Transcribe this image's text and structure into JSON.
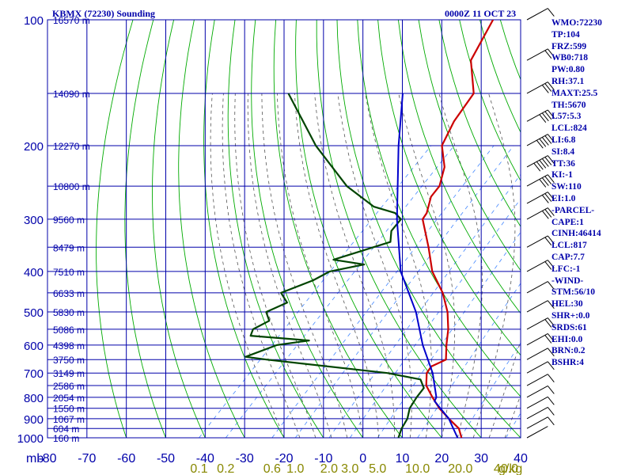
{
  "header": {
    "station": "KBMX (72230) Sounding",
    "time": "0000Z 11 OCT 23"
  },
  "colors": {
    "grid": "#0000aa",
    "temperature": "#cc0000",
    "dewpoint": "#004400",
    "parcel": "#0000cc",
    "dry_adiabat": "#00aa00",
    "moist_adiabat": "#555555",
    "mixing_ratio": "#4488ff",
    "mixing_label": "#888800",
    "wind": "#000000"
  },
  "stats": [
    "WMO:72230",
    "TP:104",
    "FRZ:599",
    "WB0:718",
    "PW:0.80",
    "RH:37.1",
    "MAXT:25.5",
    "TH:5670",
    "L57:5.3",
    "LCL:824",
    "LI:6.8",
    "SI:8.4",
    "TT:36",
    "KI:-1",
    "SW:110",
    "EI:1.0",
    "-PARCEL-",
    "CAPE:1",
    "CINH:46414",
    "LCL:817",
    "CAP:7.7",
    "LFC:-1",
    "-WIND-",
    "STM:56/10",
    "HEL:30",
    "SHR+:0.0",
    "SRDS:61",
    "EHI:0.0",
    "BRN:0.2",
    "BSHR:4"
  ],
  "chart_data": {
    "type": "line",
    "title": "KBMX (72230) Sounding",
    "subtitle": "0000Z 11 OCT 23",
    "y_axis_unit": "mb",
    "x_axis_unit": "g/kg",
    "temperature_ticks": [
      "-80",
      "-70",
      "-60",
      "-50",
      "-40",
      "-30",
      "-20",
      "-10",
      "0",
      "10",
      "20",
      "30",
      "40"
    ],
    "temperature_range": [
      -80,
      40
    ],
    "pressure_ticks": [
      "100",
      "200",
      "300",
      "400",
      "500",
      "600",
      "700",
      "800",
      "900",
      "1000"
    ],
    "pressure_range": [
      100,
      1000
    ],
    "height_labels": [
      {
        "p": 100,
        "label": "16570 m"
      },
      {
        "p": 150,
        "label": "14090 m"
      },
      {
        "p": 200,
        "label": "12270 m"
      },
      {
        "p": 250,
        "label": "10800 m"
      },
      {
        "p": 300,
        "label": "9560 m"
      },
      {
        "p": 350,
        "label": "8479 m"
      },
      {
        "p": 400,
        "label": "7510 m"
      },
      {
        "p": 450,
        "label": "6633 m"
      },
      {
        "p": 500,
        "label": "5830 m"
      },
      {
        "p": 550,
        "label": "5086 m"
      },
      {
        "p": 600,
        "label": "4398 m"
      },
      {
        "p": 650,
        "label": "3750 m"
      },
      {
        "p": 700,
        "label": "3149 m"
      },
      {
        "p": 750,
        "label": "2586 m"
      },
      {
        "p": 800,
        "label": "2054 m"
      },
      {
        "p": 850,
        "label": "1550 m"
      },
      {
        "p": 900,
        "label": "1067 m"
      },
      {
        "p": 950,
        "label": "604 m"
      },
      {
        "p": 1000,
        "label": "160 m"
      }
    ],
    "mixing_ratio_labels": [
      "0.1",
      "0.2",
      "0.6",
      "1.0",
      "2.0",
      "3.0",
      "5.0",
      "10.0",
      "20.0",
      "40.0"
    ],
    "mixing_ratio_values": [
      0.1,
      0.2,
      0.6,
      1.0,
      2.0,
      3.0,
      5.0,
      10.0,
      20.0,
      40.0
    ],
    "series": [
      {
        "key": "temperature",
        "points": [
          {
            "p": 100,
            "t": -71.5
          },
          {
            "p": 125,
            "t": -67
          },
          {
            "p": 150,
            "t": -58
          },
          {
            "p": 175,
            "t": -56
          },
          {
            "p": 200,
            "t": -53
          },
          {
            "p": 225,
            "t": -47
          },
          {
            "p": 250,
            "t": -43.5
          },
          {
            "p": 265,
            "t": -43
          },
          {
            "p": 290,
            "t": -40
          },
          {
            "p": 300,
            "t": -39.5
          },
          {
            "p": 350,
            "t": -31
          },
          {
            "p": 400,
            "t": -24
          },
          {
            "p": 450,
            "t": -16
          },
          {
            "p": 500,
            "t": -10
          },
          {
            "p": 550,
            "t": -5.5
          },
          {
            "p": 600,
            "t": -2
          },
          {
            "p": 650,
            "t": 1.5
          },
          {
            "p": 675,
            "t": -0.5
          },
          {
            "p": 700,
            "t": 0
          },
          {
            "p": 750,
            "t": 3
          },
          {
            "p": 800,
            "t": 7.5
          },
          {
            "p": 850,
            "t": 12
          },
          {
            "p": 900,
            "t": 17
          },
          {
            "p": 950,
            "t": 22
          },
          {
            "p": 1000,
            "t": 25
          }
        ]
      },
      {
        "key": "dewpoint",
        "points": [
          {
            "p": 150,
            "t": -105
          },
          {
            "p": 200,
            "t": -85
          },
          {
            "p": 250,
            "t": -67
          },
          {
            "p": 280,
            "t": -55
          },
          {
            "p": 290,
            "t": -48
          },
          {
            "p": 300,
            "t": -45
          },
          {
            "p": 320,
            "t": -44.5
          },
          {
            "p": 340,
            "t": -42
          },
          {
            "p": 350,
            "t": -45
          },
          {
            "p": 375,
            "t": -52
          },
          {
            "p": 385,
            "t": -43
          },
          {
            "p": 400,
            "t": -50
          },
          {
            "p": 420,
            "t": -52
          },
          {
            "p": 450,
            "t": -57
          },
          {
            "p": 475,
            "t": -53
          },
          {
            "p": 500,
            "t": -56
          },
          {
            "p": 525,
            "t": -53
          },
          {
            "p": 550,
            "t": -55
          },
          {
            "p": 570,
            "t": -54
          },
          {
            "p": 585,
            "t": -38
          },
          {
            "p": 600,
            "t": -45
          },
          {
            "p": 640,
            "t": -50
          },
          {
            "p": 650,
            "t": -44
          },
          {
            "p": 700,
            "t": -10
          },
          {
            "p": 725,
            "t": 0
          },
          {
            "p": 760,
            "t": 3
          },
          {
            "p": 800,
            "t": 3.5
          },
          {
            "p": 850,
            "t": 4.5
          },
          {
            "p": 900,
            "t": 6.5
          },
          {
            "p": 950,
            "t": 7.5
          },
          {
            "p": 1000,
            "t": 9
          }
        ]
      },
      {
        "key": "parcel",
        "points": [
          {
            "p": 1000,
            "t": 24
          },
          {
            "p": 900,
            "t": 17
          },
          {
            "p": 817,
            "t": 9
          },
          {
            "p": 800,
            "t": 8.5
          },
          {
            "p": 700,
            "t": 1.5
          },
          {
            "p": 600,
            "t": -8
          },
          {
            "p": 500,
            "t": -18
          },
          {
            "p": 400,
            "t": -32
          },
          {
            "p": 300,
            "t": -46
          },
          {
            "p": 200,
            "t": -64
          },
          {
            "p": 150,
            "t": -76
          }
        ]
      }
    ],
    "winds": [
      {
        "p": 100,
        "spd": 10
      },
      {
        "p": 125,
        "spd": 20
      },
      {
        "p": 150,
        "spd": 30
      },
      {
        "p": 175,
        "spd": 40
      },
      {
        "p": 200,
        "spd": 50
      },
      {
        "p": 225,
        "spd": 60
      },
      {
        "p": 250,
        "spd": 40
      },
      {
        "p": 275,
        "spd": 35
      },
      {
        "p": 300,
        "spd": 30
      },
      {
        "p": 350,
        "spd": 25
      },
      {
        "p": 400,
        "spd": 20
      },
      {
        "p": 450,
        "spd": 15
      },
      {
        "p": 500,
        "spd": 15
      },
      {
        "p": 550,
        "spd": 20
      },
      {
        "p": 600,
        "spd": 25
      },
      {
        "p": 650,
        "spd": 15
      },
      {
        "p": 700,
        "spd": 10
      },
      {
        "p": 750,
        "spd": 10
      },
      {
        "p": 800,
        "spd": 15
      },
      {
        "p": 850,
        "spd": 15
      },
      {
        "p": 900,
        "spd": 10
      },
      {
        "p": 950,
        "spd": 10
      },
      {
        "p": 1000,
        "spd": 5
      }
    ]
  }
}
